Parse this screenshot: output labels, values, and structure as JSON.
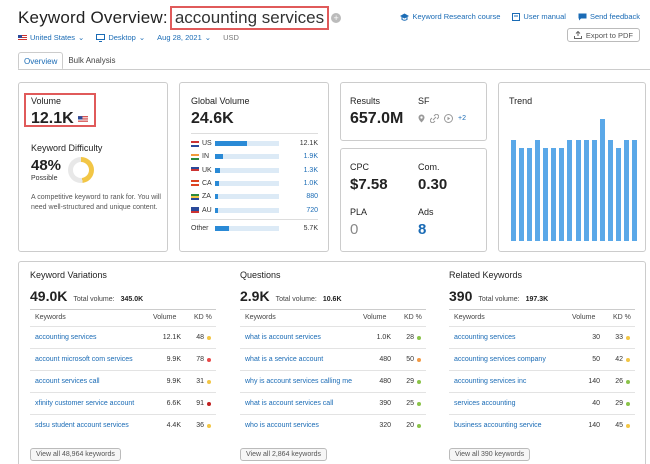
{
  "header": {
    "title": "Keyword Overview:",
    "keyword": "accounting services",
    "plus_icon": "plus-circle-icon",
    "links": [
      {
        "label": "Keyword Research course",
        "icon": "graduation-icon"
      },
      {
        "label": "User manual",
        "icon": "book-icon"
      },
      {
        "label": "Send feedback",
        "icon": "chat-icon"
      }
    ],
    "export_label": "Export to PDF",
    "filters": {
      "country": "United States",
      "device": "Desktop",
      "date": "Aug 28, 2021",
      "currency": "USD"
    }
  },
  "tabs": [
    {
      "label": "Overview",
      "active": true
    },
    {
      "label": "Bulk Analysis",
      "active": false
    }
  ],
  "volume": {
    "label": "Volume",
    "value": "12.1K"
  },
  "kd": {
    "label": "Keyword Difficulty",
    "value": "48%",
    "level": "Possible",
    "percent": 48,
    "description": "A competitive keyword to rank for. You will need well-structured and unique content."
  },
  "global": {
    "label": "Global Volume",
    "value": "24.6K",
    "rows": [
      {
        "code": "US",
        "value": "12.1K",
        "share": 0.5,
        "linked": false
      },
      {
        "code": "IN",
        "value": "1.9K",
        "share": 0.12,
        "linked": true
      },
      {
        "code": "UK",
        "value": "1.3K",
        "share": 0.08,
        "linked": true
      },
      {
        "code": "CA",
        "value": "1.0K",
        "share": 0.06,
        "linked": true
      },
      {
        "code": "ZA",
        "value": "880",
        "share": 0.05,
        "linked": true
      },
      {
        "code": "AU",
        "value": "720",
        "share": 0.05,
        "linked": true
      }
    ],
    "other": {
      "label": "Other",
      "value": "5.7K",
      "share": 0.22
    }
  },
  "results": {
    "label": "Results",
    "value": "657.0M",
    "sf_label": "SF",
    "sf_more": "+2"
  },
  "cpc": {
    "label": "CPC",
    "value": "$7.58"
  },
  "com": {
    "label": "Com.",
    "value": "0.30"
  },
  "pla": {
    "label": "PLA",
    "value": "0"
  },
  "ads": {
    "label": "Ads",
    "value": "8"
  },
  "trend": {
    "label": "Trend",
    "values": [
      0.83,
      0.76,
      0.76,
      0.83,
      0.76,
      0.76,
      0.76,
      0.83,
      0.83,
      0.83,
      0.83,
      1.0,
      0.83,
      0.76,
      0.83,
      0.83
    ]
  },
  "variations": {
    "label": "Keyword Variations",
    "count": "49.0K",
    "total_label": "Total volume:",
    "total": "345.0K",
    "cols": [
      "Keywords",
      "Volume",
      "KD %"
    ],
    "rows": [
      {
        "kw": "accounting services",
        "vol": "12.1K",
        "kd": "48",
        "color": "#f2c646"
      },
      {
        "kw": "account microsoft com services",
        "vol": "9.9K",
        "kd": "78",
        "color": "#e84a4a"
      },
      {
        "kw": "account services call",
        "vol": "9.9K",
        "kd": "31",
        "color": "#f2c646"
      },
      {
        "kw": "xfinity customer service account",
        "vol": "6.6K",
        "kd": "91",
        "color": "#c02020"
      },
      {
        "kw": "sdsu student account services",
        "vol": "4.4K",
        "kd": "36",
        "color": "#f2c646"
      }
    ],
    "view_all": "View all 48,964 keywords"
  },
  "questions": {
    "label": "Questions",
    "count": "2.9K",
    "total_label": "Total volume:",
    "total": "10.6K",
    "cols": [
      "Keywords",
      "Volume",
      "KD %"
    ],
    "rows": [
      {
        "kw": "what is account services",
        "vol": "1.0K",
        "kd": "28",
        "color": "#8bc34a"
      },
      {
        "kw": "what is a service account",
        "vol": "480",
        "kd": "50",
        "color": "#f29a46"
      },
      {
        "kw": "why is account services calling me",
        "vol": "480",
        "kd": "29",
        "color": "#8bc34a"
      },
      {
        "kw": "what is account services call",
        "vol": "390",
        "kd": "25",
        "color": "#8bc34a"
      },
      {
        "kw": "who is account services",
        "vol": "320",
        "kd": "20",
        "color": "#8bc34a"
      }
    ],
    "view_all": "View all 2,864 keywords"
  },
  "related": {
    "label": "Related Keywords",
    "count": "390",
    "total_label": "Total volume:",
    "total": "197.3K",
    "cols": [
      "Keywords",
      "Volume",
      "KD %"
    ],
    "rows": [
      {
        "kw": "accounting services",
        "vol": "30",
        "kd": "33",
        "color": "#f2c646"
      },
      {
        "kw": "accounting services company",
        "vol": "50",
        "kd": "42",
        "color": "#f2c646"
      },
      {
        "kw": "accounting services inc",
        "vol": "140",
        "kd": "26",
        "color": "#8bc34a"
      },
      {
        "kw": "services accounting",
        "vol": "40",
        "kd": "29",
        "color": "#8bc34a"
      },
      {
        "kw": "business accounting service",
        "vol": "140",
        "kd": "45",
        "color": "#f2c646"
      }
    ],
    "view_all": "View all 390 keywords"
  }
}
